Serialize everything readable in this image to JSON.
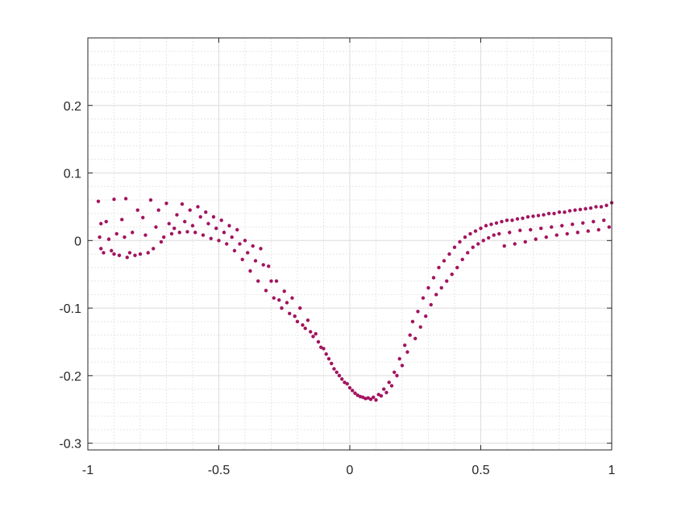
{
  "chart_data": {
    "type": "scatter",
    "title": "",
    "xlabel": "",
    "ylabel": "",
    "xlim": [
      -1,
      1
    ],
    "ylim": [
      -0.31,
      0.3
    ],
    "xticks": [
      -1,
      -0.5,
      0,
      0.5,
      1
    ],
    "xtick_labels": [
      "-1",
      "-0.5",
      "0",
      "0.5",
      "1"
    ],
    "yticks": [
      -0.3,
      -0.2,
      -0.1,
      0,
      0.1,
      0.2
    ],
    "ytick_labels": [
      "-0.3",
      "-0.2",
      "-0.1",
      "0",
      "0.1",
      "0.2"
    ],
    "grid": true,
    "minor_grid": true,
    "marker_color": "#A2145F",
    "series": [
      {
        "values": [
          [
            -0.96,
            0.058
          ],
          [
            -0.95,
            0.025
          ],
          [
            -0.955,
            0.005
          ],
          [
            -0.95,
            -0.012
          ],
          [
            -0.94,
            -0.018
          ],
          [
            -0.93,
            0.028
          ],
          [
            -0.92,
            0.002
          ],
          [
            -0.91,
            -0.015
          ],
          [
            -0.9,
            0.061
          ],
          [
            -0.9,
            -0.02
          ],
          [
            -0.89,
            0.01
          ],
          [
            -0.88,
            -0.022
          ],
          [
            -0.87,
            0.031
          ],
          [
            -0.86,
            0.005
          ],
          [
            -0.855,
            0.062
          ],
          [
            -0.85,
            -0.025
          ],
          [
            -0.84,
            -0.018
          ],
          [
            -0.83,
            0.012
          ],
          [
            -0.82,
            -0.022
          ],
          [
            -0.81,
            0.045
          ],
          [
            -0.8,
            -0.02
          ],
          [
            -0.79,
            0.034
          ],
          [
            -0.78,
            0.008
          ],
          [
            -0.77,
            -0.018
          ],
          [
            -0.76,
            0.06
          ],
          [
            -0.75,
            -0.012
          ],
          [
            -0.74,
            0.02
          ],
          [
            -0.73,
            0.045
          ],
          [
            -0.72,
            -0.002
          ],
          [
            -0.71,
            0.005
          ],
          [
            -0.7,
            0.055
          ],
          [
            -0.69,
            0.025
          ],
          [
            -0.68,
            0.01
          ],
          [
            -0.67,
            0.018
          ],
          [
            -0.66,
            0.038
          ],
          [
            -0.65,
            0.012
          ],
          [
            -0.64,
            0.054
          ],
          [
            -0.63,
            0.028
          ],
          [
            -0.62,
            0.013
          ],
          [
            -0.61,
            0.045
          ],
          [
            -0.6,
            0.022
          ],
          [
            -0.59,
            0.012
          ],
          [
            -0.58,
            0.05
          ],
          [
            -0.57,
            0.035
          ],
          [
            -0.56,
            0.008
          ],
          [
            -0.55,
            0.042
          ],
          [
            -0.54,
            0.025
          ],
          [
            -0.53,
            0.003
          ],
          [
            -0.52,
            0.035
          ],
          [
            -0.51,
            0.018
          ],
          [
            -0.5,
            0.0
          ],
          [
            -0.49,
            0.03
          ],
          [
            -0.48,
            0.012
          ],
          [
            -0.47,
            -0.005
          ],
          [
            -0.46,
            0.022
          ],
          [
            -0.45,
            0.005
          ],
          [
            -0.44,
            -0.015
          ],
          [
            -0.43,
            0.016
          ],
          [
            -0.42,
            -0.005
          ],
          [
            -0.41,
            -0.028
          ],
          [
            -0.4,
            0.0
          ],
          [
            -0.39,
            -0.018
          ],
          [
            -0.38,
            -0.045
          ],
          [
            -0.37,
            -0.008
          ],
          [
            -0.36,
            -0.03
          ],
          [
            -0.35,
            -0.06
          ],
          [
            -0.34,
            -0.012
          ],
          [
            -0.33,
            -0.036
          ],
          [
            -0.32,
            -0.074
          ],
          [
            -0.31,
            -0.038
          ],
          [
            -0.3,
            -0.06
          ],
          [
            -0.29,
            -0.085
          ],
          [
            -0.28,
            -0.06
          ],
          [
            -0.27,
            -0.088
          ],
          [
            -0.26,
            -0.1
          ],
          [
            -0.25,
            -0.075
          ],
          [
            -0.24,
            -0.092
          ],
          [
            -0.23,
            -0.108
          ],
          [
            -0.22,
            -0.085
          ],
          [
            -0.21,
            -0.112
          ],
          [
            -0.2,
            -0.12
          ],
          [
            -0.19,
            -0.1
          ],
          [
            -0.18,
            -0.125
          ],
          [
            -0.17,
            -0.13
          ],
          [
            -0.16,
            -0.118
          ],
          [
            -0.15,
            -0.135
          ],
          [
            -0.14,
            -0.142
          ],
          [
            -0.13,
            -0.138
          ],
          [
            -0.12,
            -0.15
          ],
          [
            -0.11,
            -0.158
          ],
          [
            -0.1,
            -0.16
          ],
          [
            -0.09,
            -0.168
          ],
          [
            -0.08,
            -0.175
          ],
          [
            -0.07,
            -0.182
          ],
          [
            -0.06,
            -0.19
          ],
          [
            -0.05,
            -0.195
          ],
          [
            -0.04,
            -0.2
          ],
          [
            -0.03,
            -0.205
          ],
          [
            -0.02,
            -0.21
          ],
          [
            -0.01,
            -0.212
          ],
          [
            0.0,
            -0.218
          ],
          [
            0.01,
            -0.222
          ],
          [
            0.02,
            -0.226
          ],
          [
            0.03,
            -0.229
          ],
          [
            0.04,
            -0.231
          ],
          [
            0.05,
            -0.232
          ],
          [
            0.06,
            -0.234
          ],
          [
            0.07,
            -0.233
          ],
          [
            0.08,
            -0.235
          ],
          [
            0.09,
            -0.232
          ],
          [
            0.1,
            -0.236
          ],
          [
            0.11,
            -0.228
          ],
          [
            0.12,
            -0.23
          ],
          [
            0.13,
            -0.22
          ],
          [
            0.14,
            -0.225
          ],
          [
            0.15,
            -0.21
          ],
          [
            0.16,
            -0.215
          ],
          [
            0.17,
            -0.195
          ],
          [
            0.18,
            -0.2
          ],
          [
            0.19,
            -0.175
          ],
          [
            0.2,
            -0.185
          ],
          [
            0.21,
            -0.155
          ],
          [
            0.22,
            -0.165
          ],
          [
            0.23,
            -0.14
          ],
          [
            0.24,
            -0.12
          ],
          [
            0.25,
            -0.145
          ],
          [
            0.26,
            -0.105
          ],
          [
            0.27,
            -0.128
          ],
          [
            0.28,
            -0.085
          ],
          [
            0.29,
            -0.112
          ],
          [
            0.3,
            -0.07
          ],
          [
            0.31,
            -0.095
          ],
          [
            0.32,
            -0.055
          ],
          [
            0.33,
            -0.08
          ],
          [
            0.34,
            -0.04
          ],
          [
            0.35,
            -0.07
          ],
          [
            0.36,
            -0.03
          ],
          [
            0.37,
            -0.06
          ],
          [
            0.38,
            -0.02
          ],
          [
            0.39,
            -0.05
          ],
          [
            0.4,
            -0.01
          ],
          [
            0.41,
            -0.04
          ],
          [
            0.42,
            -0.002
          ],
          [
            0.43,
            -0.028
          ],
          [
            0.44,
            0.005
          ],
          [
            0.45,
            -0.018
          ],
          [
            0.46,
            0.01
          ],
          [
            0.47,
            -0.01
          ],
          [
            0.48,
            0.014
          ],
          [
            0.49,
            -0.005
          ],
          [
            0.5,
            0.018
          ],
          [
            0.51,
            0.0
          ],
          [
            0.52,
            0.022
          ],
          [
            0.53,
            0.004
          ],
          [
            0.54,
            0.024
          ],
          [
            0.55,
            0.008
          ],
          [
            0.56,
            0.026
          ],
          [
            0.57,
            0.01
          ],
          [
            0.58,
            0.028
          ],
          [
            0.59,
            -0.008
          ],
          [
            0.6,
            0.03
          ],
          [
            0.61,
            0.012
          ],
          [
            0.62,
            0.03
          ],
          [
            0.63,
            -0.005
          ],
          [
            0.64,
            0.032
          ],
          [
            0.65,
            0.015
          ],
          [
            0.66,
            0.033
          ],
          [
            0.67,
            -0.002
          ],
          [
            0.68,
            0.035
          ],
          [
            0.69,
            0.016
          ],
          [
            0.7,
            0.036
          ],
          [
            0.71,
            0.002
          ],
          [
            0.72,
            0.037
          ],
          [
            0.73,
            0.018
          ],
          [
            0.74,
            0.038
          ],
          [
            0.75,
            0.005
          ],
          [
            0.76,
            0.04
          ],
          [
            0.77,
            0.02
          ],
          [
            0.78,
            0.04
          ],
          [
            0.79,
            0.008
          ],
          [
            0.8,
            0.042
          ],
          [
            0.81,
            0.022
          ],
          [
            0.82,
            0.042
          ],
          [
            0.83,
            0.01
          ],
          [
            0.84,
            0.044
          ],
          [
            0.85,
            0.024
          ],
          [
            0.86,
            0.045
          ],
          [
            0.87,
            0.012
          ],
          [
            0.88,
            0.046
          ],
          [
            0.89,
            0.026
          ],
          [
            0.9,
            0.047
          ],
          [
            0.91,
            0.014
          ],
          [
            0.92,
            0.048
          ],
          [
            0.93,
            0.028
          ],
          [
            0.94,
            0.05
          ],
          [
            0.95,
            0.016
          ],
          [
            0.96,
            0.05
          ],
          [
            0.97,
            0.03
          ],
          [
            0.98,
            0.052
          ],
          [
            0.99,
            0.02
          ],
          [
            1.0,
            0.056
          ]
        ]
      }
    ]
  }
}
